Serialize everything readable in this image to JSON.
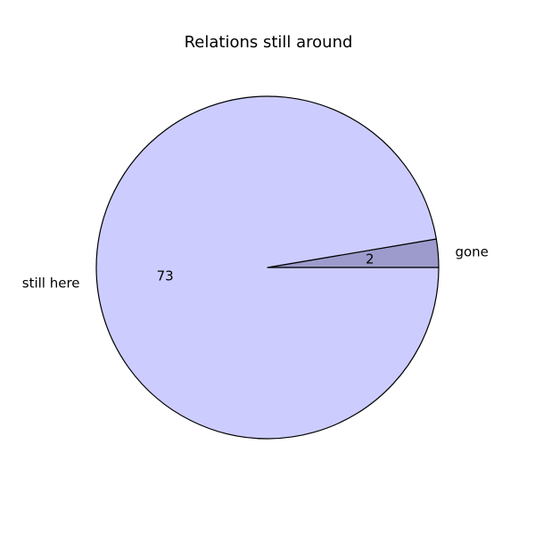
{
  "chart_data": {
    "type": "pie",
    "title": "Relations still around",
    "categories": [
      "gone",
      "still here"
    ],
    "values": [
      2,
      73
    ],
    "labels": [
      "2",
      "73"
    ],
    "colors": [
      "#9d9bcc",
      "#ccccff"
    ],
    "edge_color": "#000000",
    "start_angle_degrees": 0,
    "direction": "counterclockwise"
  }
}
